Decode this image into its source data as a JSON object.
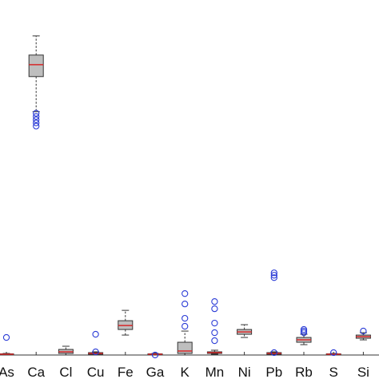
{
  "chart_data": {
    "type": "box",
    "title": "",
    "xlabel": "",
    "ylabel": "",
    "categories": [
      "As",
      "Ca",
      "Cl",
      "Cu",
      "Fe",
      "Ga",
      "K",
      "Mn",
      "Ni",
      "Pb",
      "Rb",
      "S",
      "Si"
    ],
    "ylim": [
      0,
      445
    ],
    "grid": false,
    "colors": {
      "box_fill": "#bebebe",
      "box_edge": "#333333",
      "median": "#d62728",
      "outlier": "#2a3bd6",
      "axis": "#333333",
      "whisker": "#333333"
    },
    "boxes": [
      {
        "name": "As",
        "q1": 0.5,
        "median": 1,
        "q3": 1.5,
        "whisker_low": 0,
        "whisker_high": 2,
        "outliers": [
          22
        ]
      },
      {
        "name": "Ca",
        "q1": 349,
        "median": 364,
        "q3": 376,
        "whisker_low": 305,
        "whisker_high": 400,
        "outliers": [
          287,
          291,
          295,
          299,
          303
        ]
      },
      {
        "name": "Cl",
        "q1": 2,
        "median": 4,
        "q3": 7,
        "whisker_low": 0,
        "whisker_high": 11,
        "outliers": []
      },
      {
        "name": "Cu",
        "q1": 1,
        "median": 2,
        "q3": 3,
        "whisker_low": 0,
        "whisker_high": 4,
        "outliers": [
          4,
          26
        ]
      },
      {
        "name": "Fe",
        "q1": 32,
        "median": 37,
        "q3": 43,
        "whisker_low": 25,
        "whisker_high": 56,
        "outliers": []
      },
      {
        "name": "Ga",
        "q1": 0.5,
        "median": 1,
        "q3": 1.5,
        "whisker_low": 0,
        "whisker_high": 2,
        "outliers": [
          0
        ]
      },
      {
        "name": "K",
        "q1": 2,
        "median": 5,
        "q3": 16,
        "whisker_low": 0,
        "whisker_high": 30,
        "outliers": [
          36,
          46,
          64,
          77
        ]
      },
      {
        "name": "Mn",
        "q1": 2,
        "median": 3,
        "q3": 4,
        "whisker_low": 1,
        "whisker_high": 6,
        "outliers": [
          18,
          28,
          40,
          58,
          67
        ]
      },
      {
        "name": "Ni",
        "q1": 26,
        "median": 29,
        "q3": 32,
        "whisker_low": 22,
        "whisker_high": 38,
        "outliers": []
      },
      {
        "name": "Pb",
        "q1": 1,
        "median": 2,
        "q3": 3,
        "whisker_low": 0,
        "whisker_high": 4,
        "outliers": [
          3,
          97,
          100,
          103
        ]
      },
      {
        "name": "Rb",
        "q1": 16,
        "median": 19,
        "q3": 22,
        "whisker_low": 13,
        "whisker_high": 26,
        "outliers": [
          28,
          30,
          32
        ]
      },
      {
        "name": "S",
        "q1": 0.5,
        "median": 1,
        "q3": 1.5,
        "whisker_low": 0,
        "whisker_high": 2,
        "outliers": [
          3
        ]
      },
      {
        "name": "Si",
        "q1": 21,
        "median": 23,
        "q3": 25,
        "whisker_low": 19,
        "whisker_high": 28,
        "outliers": [
          30
        ]
      }
    ]
  }
}
